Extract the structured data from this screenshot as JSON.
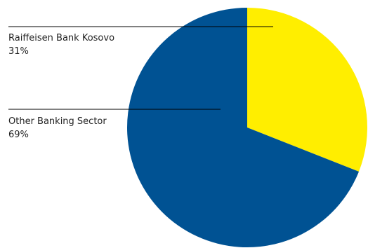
{
  "chart_data": {
    "type": "pie",
    "slices": [
      {
        "label": "Raiffeisen Bank Kosovo",
        "value": 31,
        "value_label": "31%",
        "color": "#FFEE00"
      },
      {
        "label": "Other Banking Sector",
        "value": 69,
        "value_label": "69%",
        "color": "#005293"
      }
    ],
    "start_angle": "12 o'clock",
    "direction": "clockwise",
    "labels_position": "left, with leader lines into slices",
    "leader_line_color": "#000000"
  }
}
